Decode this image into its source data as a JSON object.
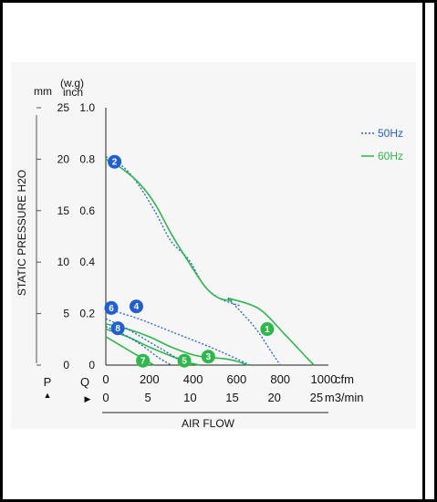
{
  "chart_data": {
    "type": "line",
    "y_axis": {
      "title": "STATIC PRESSURE H2O",
      "unit_mm": "mm",
      "unit_inch": "(w.g)\ninch",
      "ticks_mm": [
        "25",
        "20",
        "15",
        "10",
        "5",
        "0"
      ],
      "ticks_inch": [
        "1.0",
        "0.8",
        "0.6",
        "0.4",
        "0.2",
        "0"
      ],
      "ylim_inch": [
        0,
        1.0
      ],
      "symbol": "P"
    },
    "x_axis": {
      "title": "AIR FLOW",
      "symbol": "Q",
      "ticks_cfm": [
        "0",
        "200",
        "400",
        "600",
        "800",
        "1000"
      ],
      "unit_cfm": "cfm",
      "ticks_m3min": [
        "0",
        "5",
        "10",
        "15",
        "20",
        "25"
      ],
      "unit_m3min": "m3/min",
      "xlim_cfm": [
        0,
        1000
      ]
    },
    "legend": {
      "placement": "right",
      "items": [
        {
          "label": "50Hz",
          "style": "dotted",
          "color": "#1f5fd6"
        },
        {
          "label": "60Hz",
          "style": "solid",
          "color": "#2db84a"
        }
      ]
    },
    "series": [
      {
        "label": "1",
        "freq": "60Hz",
        "color": "#2db84a",
        "style": "solid",
        "x": [
          560,
          700,
          820,
          920,
          955
        ],
        "y": [
          0.26,
          0.22,
          0.12,
          0.03,
          0
        ]
      },
      {
        "label": "1",
        "freq": "50Hz",
        "color": "#1f5fd6",
        "style": "dotted",
        "x": [
          560,
          680,
          760,
          800
        ],
        "y": [
          0.26,
          0.15,
          0.05,
          0
        ]
      },
      {
        "label": "2",
        "freq": "50Hz",
        "color": "#1f5fd6",
        "style": "dotted",
        "x": [
          0,
          80,
          150,
          230,
          300,
          380,
          450,
          520,
          580,
          620
        ],
        "y": [
          0.81,
          0.77,
          0.7,
          0.59,
          0.48,
          0.41,
          0.31,
          0.26,
          0.24,
          0.23
        ]
      },
      {
        "label": "2",
        "freq": "60Hz",
        "color": "#2db84a",
        "style": "solid",
        "x": [
          0,
          80,
          160,
          230,
          300,
          380,
          460,
          520,
          580
        ],
        "y": [
          0.8,
          0.76,
          0.7,
          0.62,
          0.51,
          0.4,
          0.3,
          0.26,
          0.25
        ]
      },
      {
        "label": "3",
        "freq": "60Hz",
        "color": "#2db84a",
        "style": "solid",
        "x": [
          0,
          100,
          200,
          300,
          400,
          470,
          540,
          600,
          650
        ],
        "y": [
          0.16,
          0.14,
          0.11,
          0.07,
          0.04,
          0.03,
          0.025,
          0.015,
          0
        ]
      },
      {
        "label": "4",
        "freq": "50Hz",
        "color": "#1f5fd6",
        "style": "dotted",
        "x": [
          0,
          150,
          300,
          450,
          560,
          660
        ],
        "y": [
          0.22,
          0.18,
          0.13,
          0.08,
          0.04,
          0
        ]
      },
      {
        "label": "5",
        "freq": "60Hz",
        "color": "#2db84a",
        "style": "solid",
        "x": [
          0,
          100,
          200,
          300,
          380,
          430
        ],
        "y": [
          0.14,
          0.11,
          0.07,
          0.035,
          0.01,
          0
        ]
      },
      {
        "label": "6",
        "freq": "50Hz",
        "color": "#1f5fd6",
        "style": "dotted",
        "x": [
          0,
          100,
          200,
          300,
          380
        ],
        "y": [
          0.18,
          0.14,
          0.09,
          0.04,
          0
        ]
      },
      {
        "label": "7",
        "freq": "60Hz",
        "color": "#2db84a",
        "style": "solid",
        "x": [
          0,
          60,
          120,
          180,
          220
        ],
        "y": [
          0.11,
          0.08,
          0.05,
          0.02,
          0
        ]
      },
      {
        "label": "8",
        "freq": "50Hz",
        "color": "#1f5fd6",
        "style": "dotted",
        "x": [
          0,
          80,
          160,
          240,
          300
        ],
        "y": [
          0.15,
          0.12,
          0.08,
          0.03,
          0
        ]
      }
    ],
    "markers": [
      {
        "label": "1",
        "color": "#2db84a",
        "x": 740,
        "y": 0.14
      },
      {
        "label": "2",
        "color": "#1f5fd6",
        "x": 40,
        "y": 0.79
      },
      {
        "label": "3",
        "color": "#2db84a",
        "x": 470,
        "y": 0.033
      },
      {
        "label": "4",
        "color": "#1f5fd6",
        "x": 140,
        "y": 0.228
      },
      {
        "label": "5",
        "color": "#2db84a",
        "x": 360,
        "y": 0.017
      },
      {
        "label": "6",
        "color": "#1f5fd6",
        "x": 25,
        "y": 0.222
      },
      {
        "label": "7",
        "color": "#2db84a",
        "x": 170,
        "y": 0.017
      },
      {
        "label": "8",
        "color": "#1f5fd6",
        "x": 55,
        "y": 0.143
      }
    ]
  }
}
